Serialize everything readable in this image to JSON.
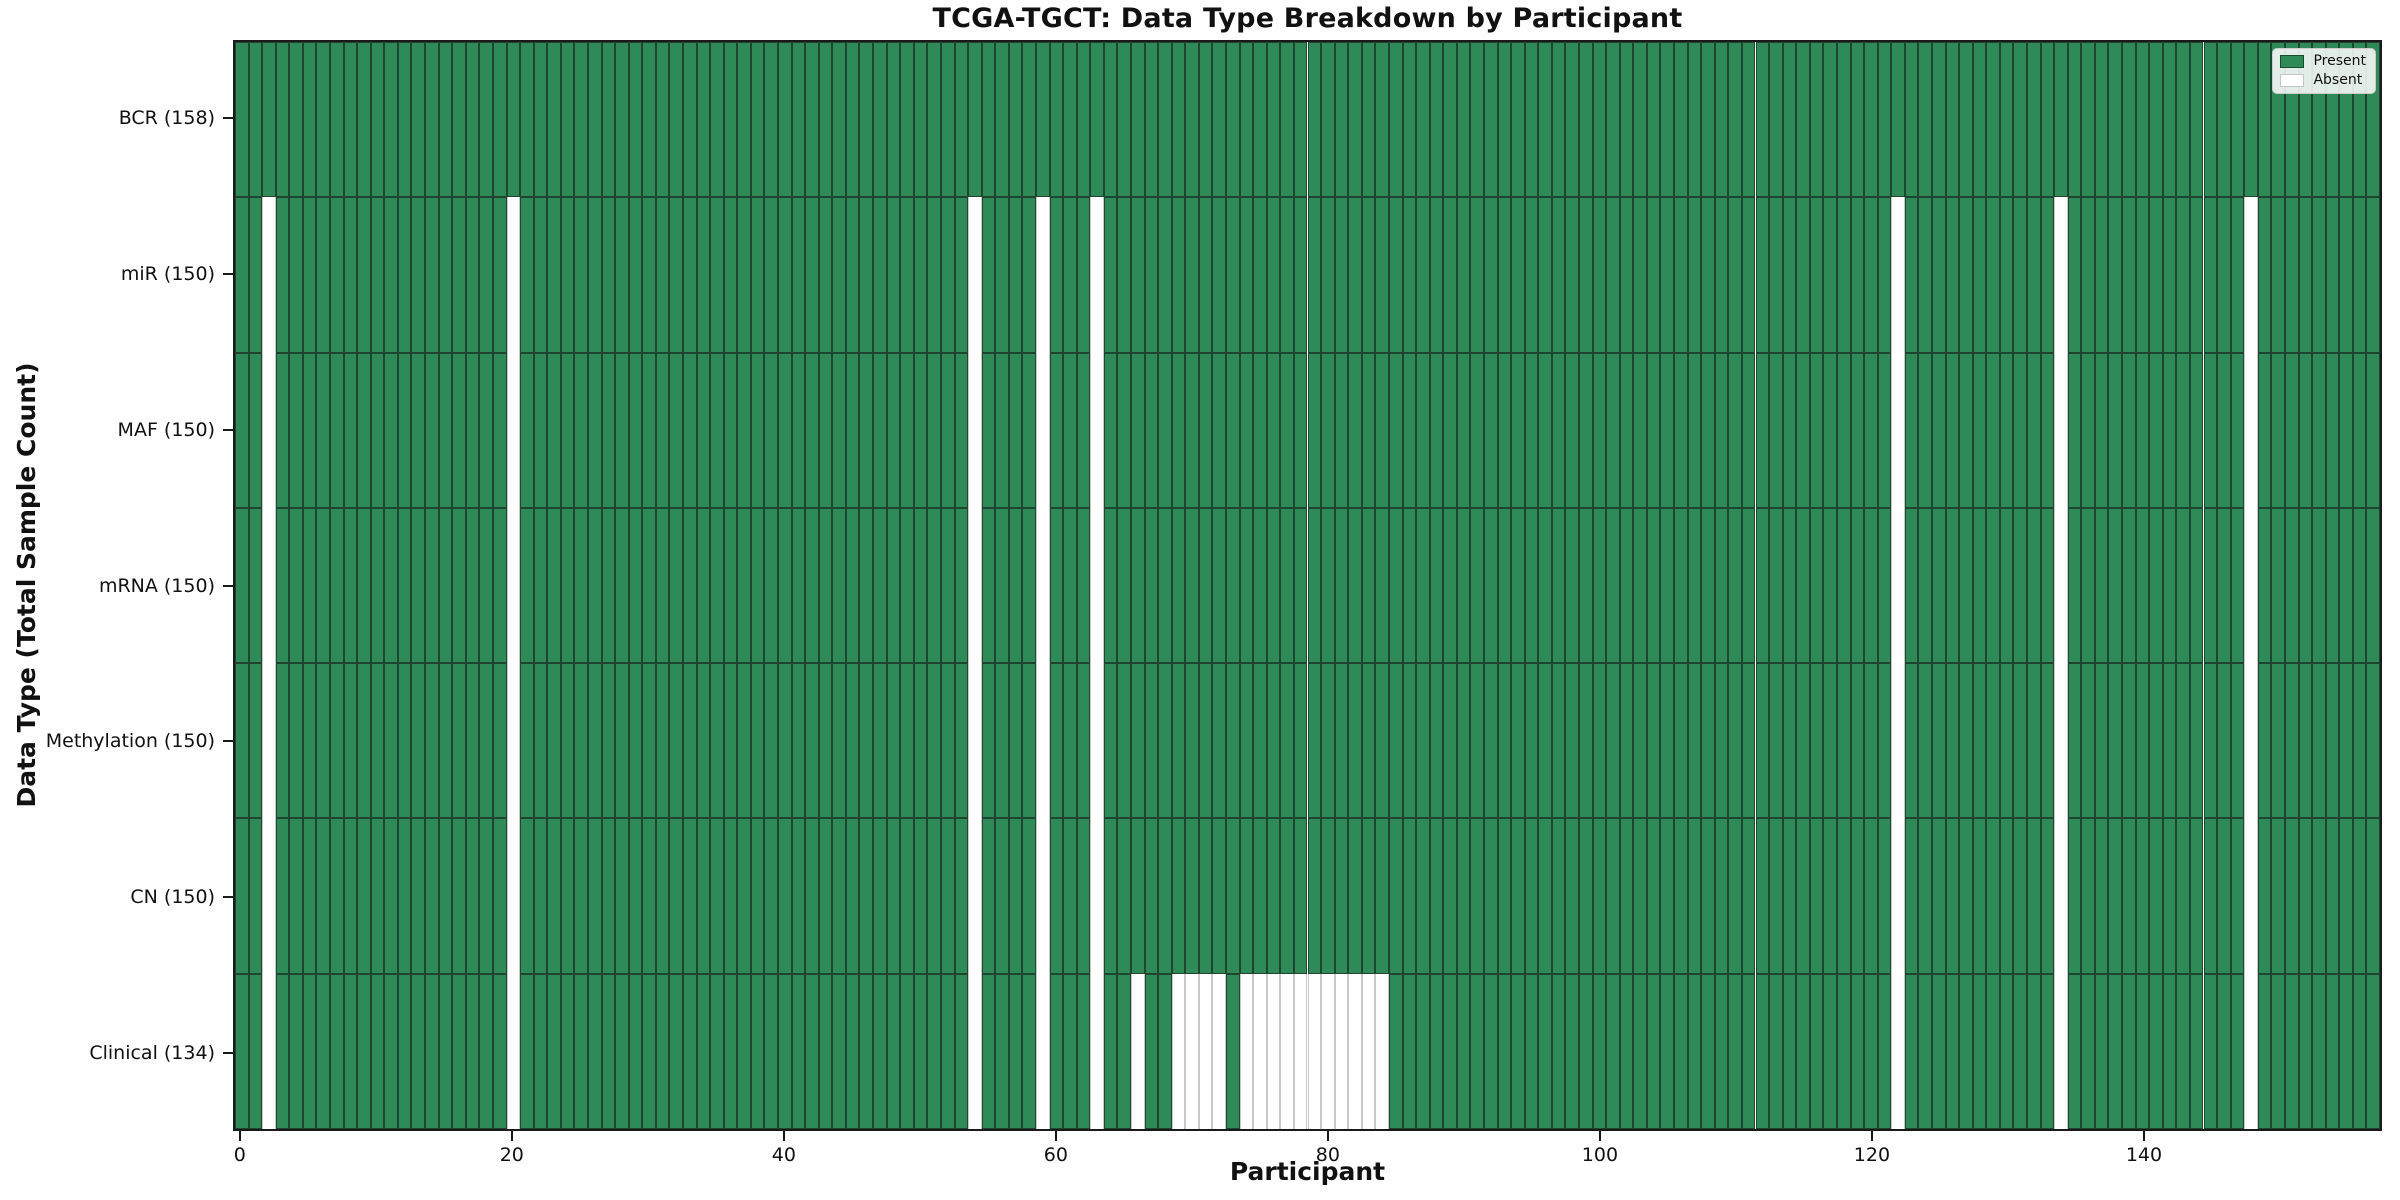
{
  "chart_data": {
    "type": "heatmap",
    "title": "TCGA-TGCT: Data Type Breakdown by Participant",
    "xlabel": "Participant",
    "ylabel": "Data Type (Total Sample Count)",
    "x_ticks": [
      0,
      20,
      40,
      60,
      80,
      100,
      120,
      140
    ],
    "n_participants": 158,
    "x_range": [
      -0.5,
      157.5
    ],
    "grid": false,
    "legend": {
      "position": "upper right",
      "items": [
        {
          "label": "Present",
          "color": "#2e8b57"
        },
        {
          "label": "Absent",
          "color": "#ffffff"
        }
      ]
    },
    "colors": {
      "present": "#2e8b57",
      "absent": "#ffffff",
      "present_edge": "#1f4430",
      "absent_edge": "#c9c9c9",
      "spine": "#1a1a1a"
    },
    "rows": [
      {
        "label": "BCR (158)",
        "name": "BCR",
        "present_count": 158,
        "absent_participants": []
      },
      {
        "label": "miR (150)",
        "name": "miR",
        "present_count": 150,
        "absent_participants": [
          2,
          20,
          54,
          59,
          63,
          122,
          134,
          148
        ]
      },
      {
        "label": "MAF (150)",
        "name": "MAF",
        "present_count": 150,
        "absent_participants": [
          2,
          20,
          54,
          59,
          63,
          122,
          134,
          148
        ]
      },
      {
        "label": "mRNA (150)",
        "name": "mRNA",
        "present_count": 150,
        "absent_participants": [
          2,
          20,
          54,
          59,
          63,
          122,
          134,
          148
        ]
      },
      {
        "label": "Methylation (150)",
        "name": "Methylation",
        "present_count": 150,
        "absent_participants": [
          2,
          20,
          54,
          59,
          63,
          122,
          134,
          148
        ]
      },
      {
        "label": "CN (150)",
        "name": "CN",
        "present_count": 150,
        "absent_participants": [
          2,
          20,
          54,
          59,
          63,
          122,
          134,
          148
        ]
      },
      {
        "label": "Clinical (134)",
        "name": "Clinical",
        "present_count": 134,
        "absent_participants": [
          2,
          20,
          54,
          59,
          63,
          66,
          69,
          70,
          71,
          72,
          74,
          75,
          76,
          77,
          78,
          79,
          80,
          81,
          82,
          83,
          84,
          122,
          134,
          148
        ]
      }
    ]
  }
}
